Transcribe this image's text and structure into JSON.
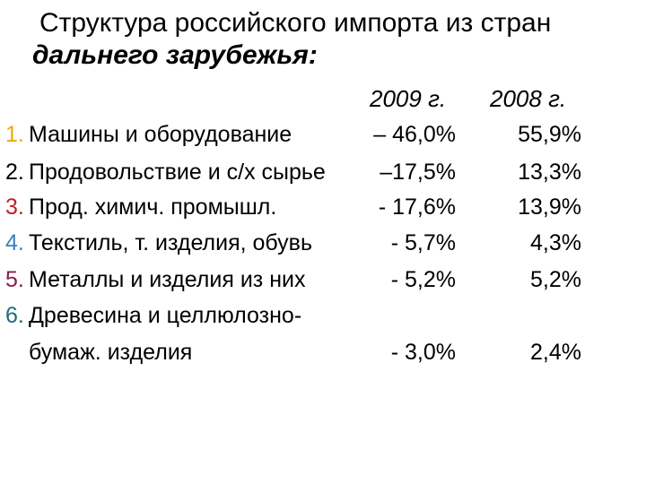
{
  "slide": {
    "title_line1": "Структура российского импорта из стран",
    "title_line2": "дальнего зарубежья:",
    "col_2009": "2009 г.",
    "col_2008": "2008  г.",
    "colors": {
      "num_1": "#f0a800",
      "num_2": "#000000",
      "num_3": "#c0202a",
      "num_4": "#3a7fc0",
      "num_5": "#8c1a4a",
      "num_6": "#1f6a7a",
      "text": "#000000",
      "background": "#ffffff"
    },
    "rows": [
      {
        "num": "1.",
        "label": "Машины и оборудование",
        "v2009": "– 46,0%",
        "v2008": "55,9%"
      },
      {
        "num": "2.",
        "label": "Продовольствие и с/х сырье",
        "v2009": "–17,5%",
        "v2008": "13,3%"
      },
      {
        "num": "3.",
        "label": "Прод. химич. промышл.",
        "v2009": "- 17,6%",
        "v2008": "13,9%"
      },
      {
        "num": "4.",
        "label": "Текстиль, т. изделия, обувь",
        "v2009": "- 5,7%",
        "v2008": "4,3%"
      },
      {
        "num": "5.",
        "label": "Металлы и изделия из них",
        "v2009": "- 5,2%",
        "v2008": "5,2%"
      },
      {
        "num": "6.",
        "label": "Древесина и целлюлозно-",
        "v2009": "",
        "v2008": ""
      },
      {
        "num": "",
        "label": "бумаж. изделия",
        "v2009": "-  3,0%",
        "v2008": "2,4%"
      }
    ]
  }
}
